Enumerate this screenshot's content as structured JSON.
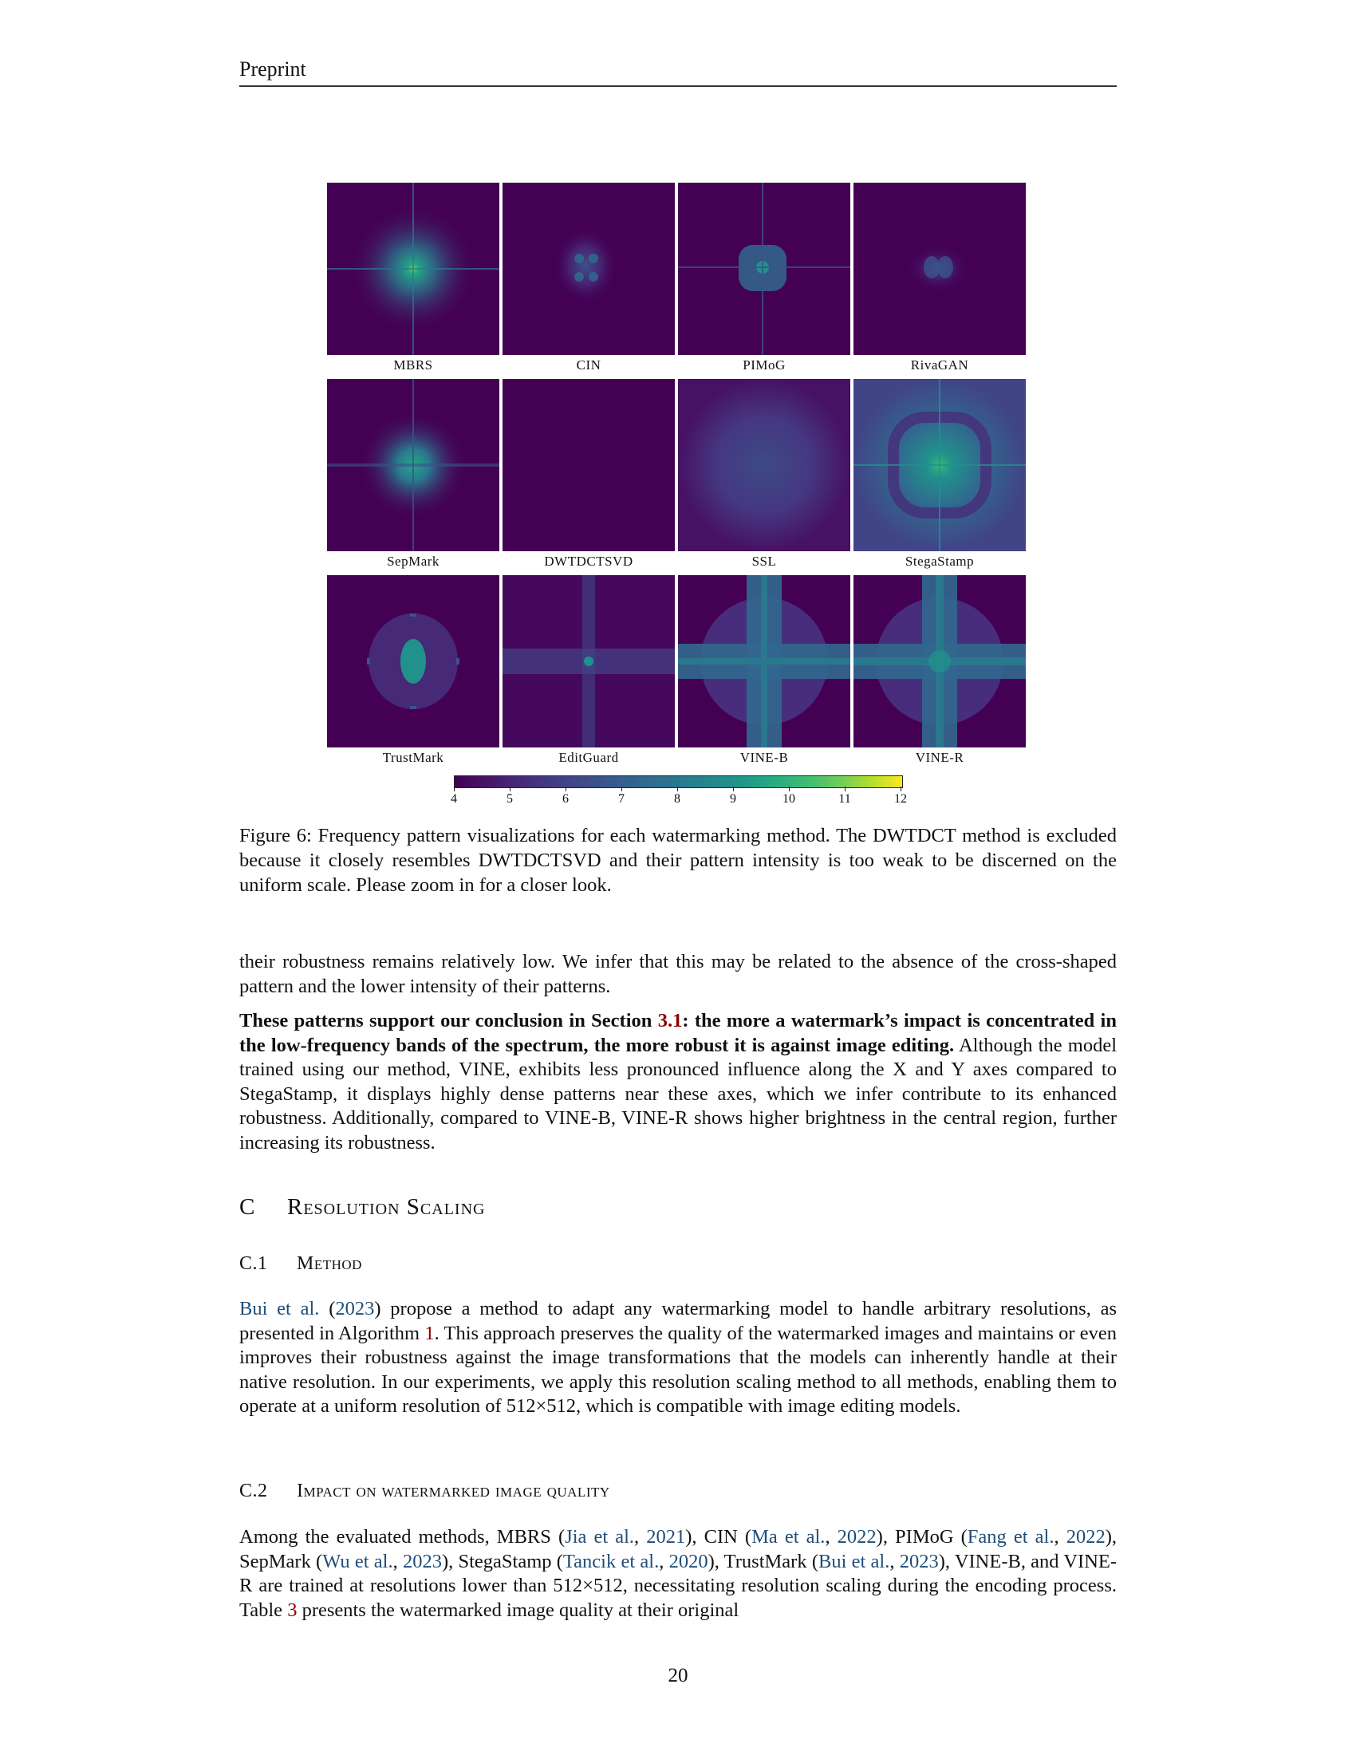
{
  "header": {
    "label": "Preprint"
  },
  "figure": {
    "rows": [
      [
        "MBRS",
        "CIN",
        "PIMoG",
        "RivaGAN"
      ],
      [
        "SepMark",
        "DWTDCTSVD",
        "SSL",
        "StegaStamp"
      ],
      [
        "TrustMark",
        "EditGuard",
        "VINE-B",
        "VINE-R"
      ]
    ],
    "colorbar_ticks": [
      "4",
      "5",
      "6",
      "7",
      "8",
      "9",
      "10",
      "11",
      "12"
    ],
    "colormap": "viridis",
    "caption": "Figure 6: Frequency pattern visualizations for each watermarking method. The DWTDCT method is excluded because it closely resembles DWTDCTSVD and their pattern intensity is too weak to be discerned on the uniform scale. Please zoom in for a closer look."
  },
  "body": {
    "p1": "their robustness remains relatively low. We infer that this may be related to the absence of the cross-shaped pattern and the lower intensity of their patterns.",
    "p2_bold_a": "These patterns support our conclusion in Section ",
    "p2_ref": "3.1",
    "p2_bold_b": ": the more a watermark’s impact is concentrated in the low-frequency bands of the spectrum, the more robust it is against image editing.",
    "p2_rest": " Although the model trained using our method, VINE, exhibits less pronounced influence along the X and Y axes compared to StegaStamp, it displays highly dense patterns near these axes, which we infer contribute to its enhanced robustness. Additionally, compared to VINE-B, VINE-R shows higher brightness in the central region, further increasing its robustness."
  },
  "section_c": {
    "num": "C",
    "title": "Resolution Scaling"
  },
  "section_c1": {
    "num": "C.1",
    "title": "Method",
    "cite_a": "Bui et al.",
    "t1": " (",
    "cite_b": "2023",
    "t2": ") propose a method to adapt any watermarking model to handle arbitrary resolutions, as presented in Algorithm ",
    "ref": "1",
    "t3": ". This approach preserves the quality of the watermarked images and maintains or even improves their robustness against the image transformations that the models can inherently handle at their native resolution. In our experiments, we apply this resolution scaling method to all methods, enabling them to operate at a uniform resolution of 512×512, which is compatible with image editing models."
  },
  "section_c2": {
    "num": "C.2",
    "title": "Impact on watermarked image quality",
    "s1": "Among the evaluated methods, MBRS (",
    "c1": "Jia et al.",
    "s2": ", ",
    "c2": "2021",
    "s3": "), CIN (",
    "c3": "Ma et al.",
    "s4": ", ",
    "c4": "2022",
    "s5": "), PIMoG (",
    "c5": "Fang et al.",
    "s6": ", ",
    "c6": "2022",
    "s7": "), SepMark (",
    "c7": "Wu et al.",
    "s8": ", ",
    "c8": "2023",
    "s9": "), StegaStamp (",
    "c9": "Tancik et al.",
    "s10": ", ",
    "c10": "2020",
    "s11": "), TrustMark (",
    "c11": "Bui et al.",
    "s12": ", ",
    "c12": "2023",
    "s13": "), VINE-B, and VINE-R are trained at resolutions lower than 512×512, necessitating resolution scaling during the encoding process. Table ",
    "r1": "3",
    "s14": " presents the watermarked image quality at their original"
  },
  "page_number": "20"
}
